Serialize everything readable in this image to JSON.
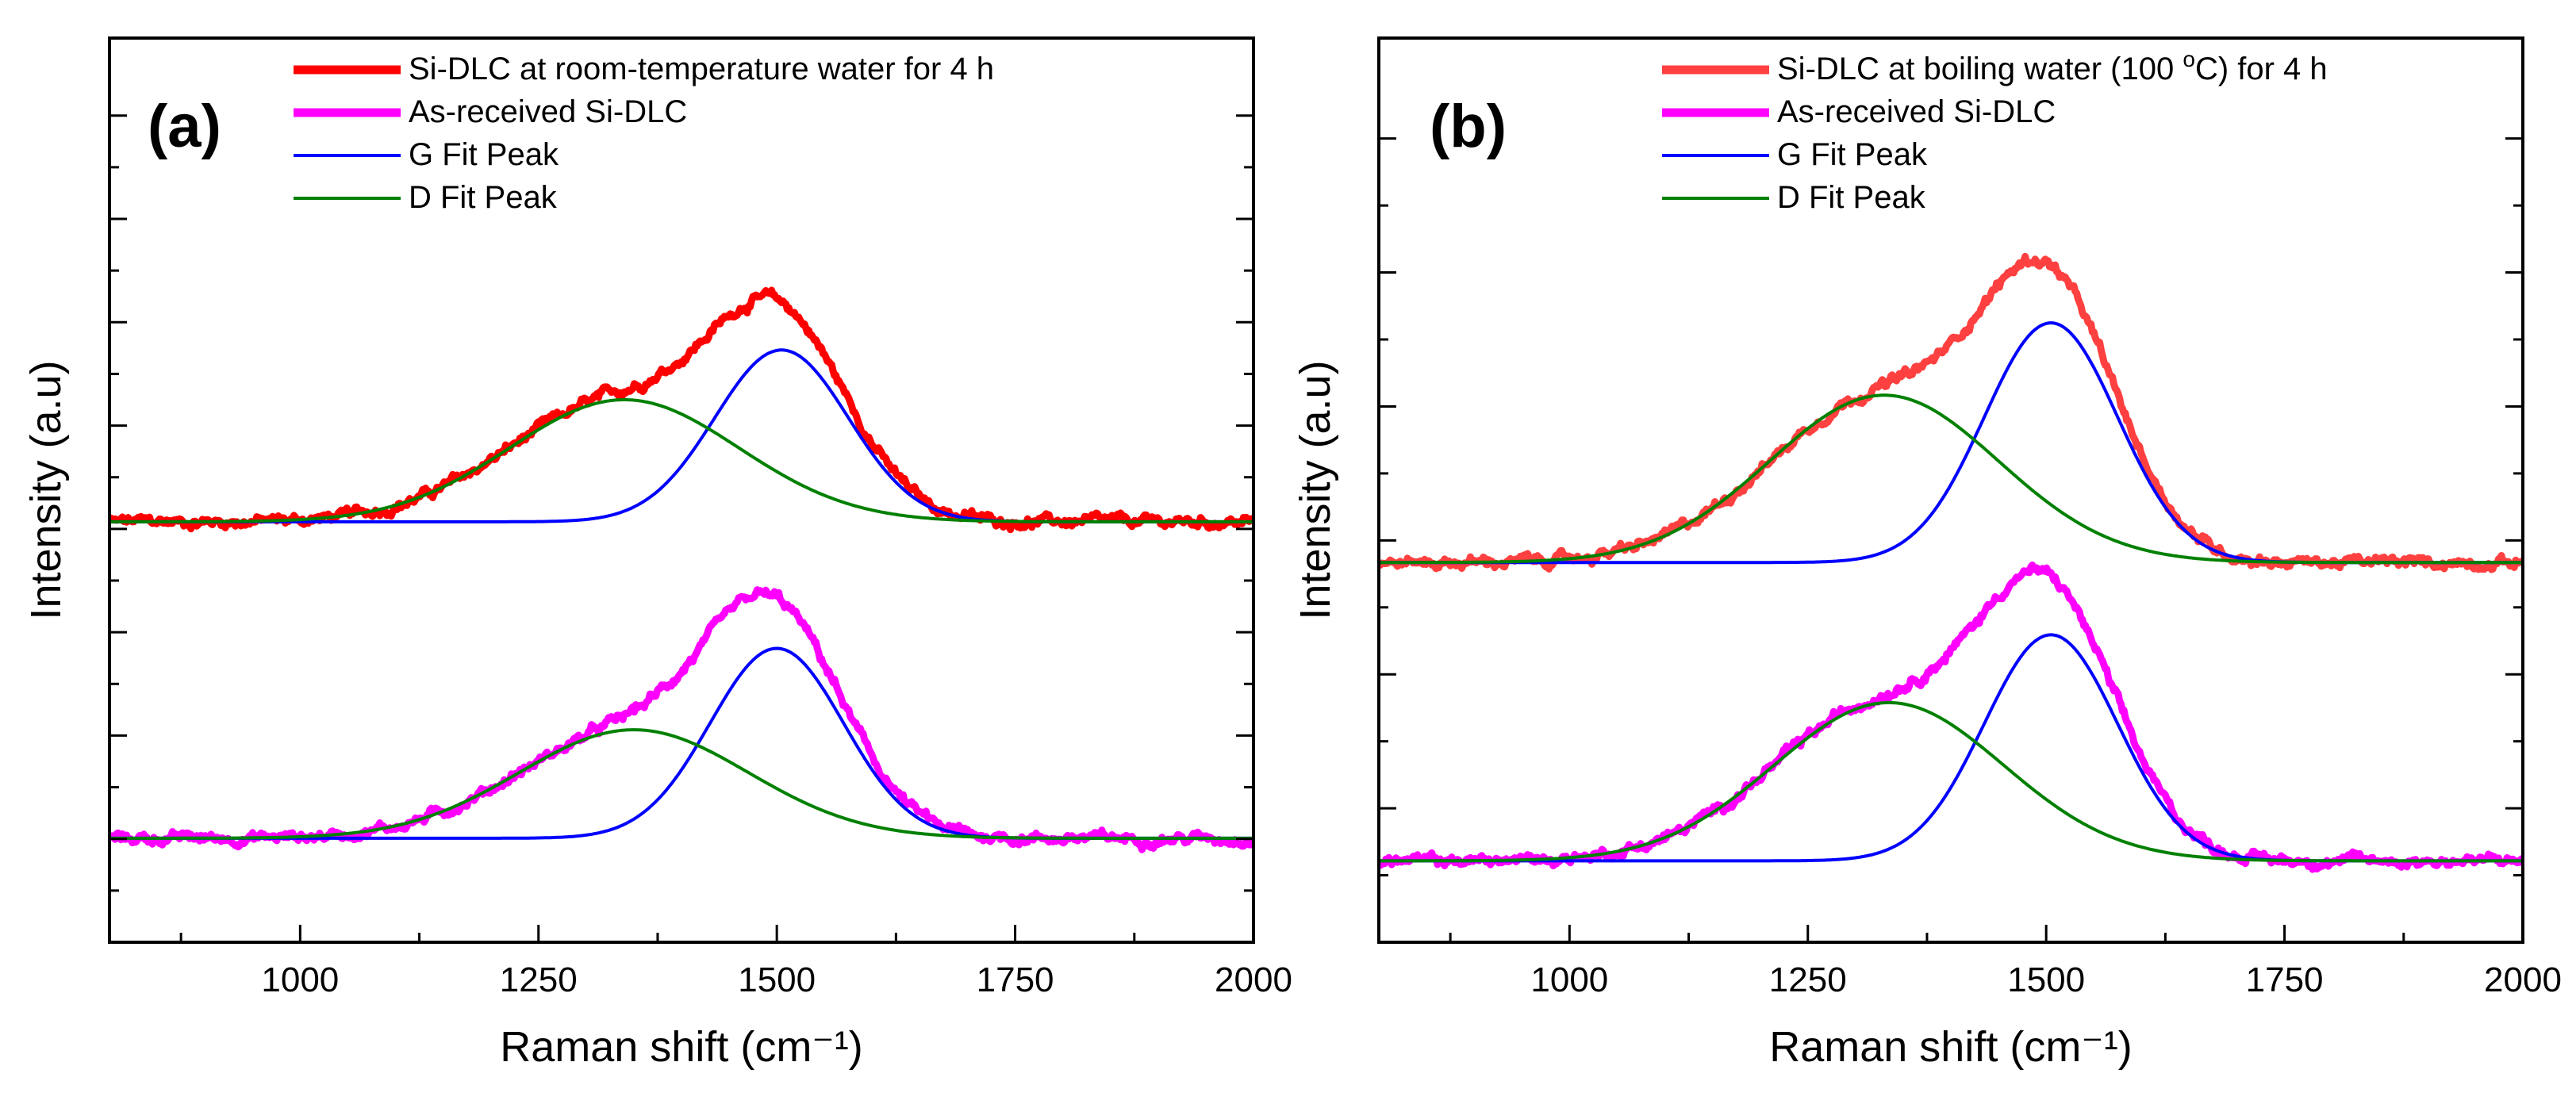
{
  "chart_data": [
    {
      "type": "line",
      "panel_label": "(a)",
      "xlabel": "Raman shift (cm⁻¹)",
      "ylabel": "Intensity (a.u)",
      "xlim": [
        800,
        2000
      ],
      "ylim": [
        0,
        1
      ],
      "x_ticks": [
        1000,
        1250,
        1500,
        1750,
        2000
      ],
      "x_tick_labels": [
        "1000",
        "1250",
        "1500",
        "1750",
        "2000"
      ],
      "legend_position": "top-right",
      "series": [
        {
          "name": "Si-DLC at room-temperature water for 4 h",
          "kind": "spectrum",
          "color": "#ff0000",
          "stroke": "thick",
          "baseline": 0.465,
          "d_center": 1340,
          "d_sigma": 120,
          "d_amp": 0.135,
          "g_center": 1505,
          "g_sigma": 70,
          "g_amp": 0.19,
          "noise": 0.005,
          "sample_points": [
            [
              800,
              0.47
            ],
            [
              1000,
              0.475
            ],
            [
              1200,
              0.54
            ],
            [
              1300,
              0.6
            ],
            [
              1400,
              0.64
            ],
            [
              1460,
              0.7
            ],
            [
              1500,
              0.7
            ],
            [
              1600,
              0.55
            ],
            [
              1750,
              0.47
            ],
            [
              2000,
              0.47
            ]
          ]
        },
        {
          "name": "As-received Si-DLC",
          "kind": "spectrum",
          "color": "#ff00ff",
          "stroke": "thick",
          "baseline": 0.115,
          "d_center": 1350,
          "d_sigma": 120,
          "d_amp": 0.12,
          "g_center": 1500,
          "g_sigma": 70,
          "g_amp": 0.21,
          "noise": 0.005,
          "sample_points": [
            [
              800,
              0.12
            ],
            [
              1000,
              0.12
            ],
            [
              1200,
              0.19
            ],
            [
              1300,
              0.25
            ],
            [
              1400,
              0.29
            ],
            [
              1470,
              0.4
            ],
            [
              1500,
              0.39
            ],
            [
              1600,
              0.25
            ],
            [
              1750,
              0.12
            ],
            [
              2000,
              0.12
            ]
          ]
        },
        {
          "name": "G Fit Peak",
          "kind": "gaussian",
          "color": "#0000ff",
          "stroke": "thin",
          "fits": [
            {
              "baseline": 0.465,
              "center": 1505,
              "sigma": 70,
              "amp": 0.19
            },
            {
              "baseline": 0.115,
              "center": 1500,
              "sigma": 70,
              "amp": 0.21
            }
          ]
        },
        {
          "name": "D Fit Peak",
          "kind": "gaussian",
          "color": "#008000",
          "stroke": "thin",
          "fits": [
            {
              "baseline": 0.465,
              "center": 1340,
              "sigma": 120,
              "amp": 0.135
            },
            {
              "baseline": 0.115,
              "center": 1350,
              "sigma": 120,
              "amp": 0.12
            }
          ]
        }
      ]
    },
    {
      "type": "line",
      "panel_label": "(b)",
      "xlabel": "Raman shift (cm⁻¹)",
      "ylabel": "Intensity (a.u)",
      "xlim": [
        800,
        2000
      ],
      "ylim": [
        0,
        1
      ],
      "x_ticks": [
        1000,
        1250,
        1500,
        1750,
        2000
      ],
      "x_tick_labels": [
        "1000",
        "1250",
        "1500",
        "1750",
        "2000"
      ],
      "legend_position": "top-right",
      "series": [
        {
          "name": "Si-DLC at boiling water (100°C) for 4 h",
          "legend_parts": [
            "Si-DLC at boiling water (100 ",
            "o",
            "C) for 4 h"
          ],
          "kind": "spectrum",
          "color": "#ff4040",
          "stroke": "thick",
          "baseline": 0.42,
          "d_center": 1330,
          "d_sigma": 120,
          "d_amp": 0.185,
          "g_center": 1505,
          "g_sigma": 70,
          "g_amp": 0.265,
          "noise": 0.005,
          "sample_points": [
            [
              800,
              0.42
            ],
            [
              1000,
              0.42
            ],
            [
              1200,
              0.51
            ],
            [
              1300,
              0.6
            ],
            [
              1400,
              0.64
            ],
            [
              1470,
              0.73
            ],
            [
              1500,
              0.72
            ],
            [
              1600,
              0.54
            ],
            [
              1750,
              0.42
            ],
            [
              2000,
              0.42
            ]
          ]
        },
        {
          "name": "As-received Si-DLC",
          "kind": "spectrum",
          "color": "#ff00ff",
          "stroke": "thick",
          "baseline": 0.09,
          "d_center": 1335,
          "d_sigma": 120,
          "d_amp": 0.175,
          "g_center": 1505,
          "g_sigma": 70,
          "g_amp": 0.25,
          "noise": 0.005,
          "sample_points": [
            [
              800,
              0.09
            ],
            [
              1000,
              0.09
            ],
            [
              1200,
              0.17
            ],
            [
              1300,
              0.26
            ],
            [
              1400,
              0.3
            ],
            [
              1470,
              0.39
            ],
            [
              1500,
              0.39
            ],
            [
              1600,
              0.21
            ],
            [
              1750,
              0.09
            ],
            [
              2000,
              0.09
            ]
          ]
        },
        {
          "name": "G Fit Peak",
          "kind": "gaussian",
          "color": "#0000ff",
          "stroke": "thin",
          "fits": [
            {
              "baseline": 0.42,
              "center": 1505,
              "sigma": 70,
              "amp": 0.265
            },
            {
              "baseline": 0.09,
              "center": 1505,
              "sigma": 70,
              "amp": 0.25
            }
          ]
        },
        {
          "name": "D Fit Peak",
          "kind": "gaussian",
          "color": "#008000",
          "stroke": "thin",
          "fits": [
            {
              "baseline": 0.42,
              "center": 1330,
              "sigma": 120,
              "amp": 0.185
            },
            {
              "baseline": 0.09,
              "center": 1335,
              "sigma": 120,
              "amp": 0.175
            }
          ]
        }
      ]
    }
  ]
}
